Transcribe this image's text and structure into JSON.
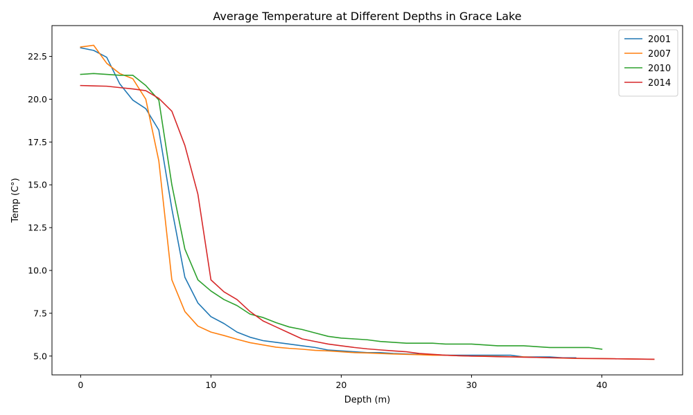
{
  "chart_data": {
    "type": "line",
    "title": "Average Temperature at Different Depths in Grace Lake",
    "xlabel": "Depth (m)",
    "ylabel": "Temp (C°)",
    "xlim": [
      -2.2,
      46.2
    ],
    "ylim": [
      3.9,
      24.3
    ],
    "xticks": [
      0,
      10,
      20,
      30,
      40
    ],
    "yticks": [
      5.0,
      7.5,
      10.0,
      12.5,
      15.0,
      17.5,
      20.0,
      22.5
    ],
    "grid": false,
    "legend_position": "top-right",
    "series": [
      {
        "name": "2001",
        "color": "#1f77b4",
        "x": [
          0,
          1,
          2,
          3,
          4,
          5,
          6,
          7,
          8,
          9,
          10,
          11,
          12,
          13,
          14,
          15,
          16,
          17,
          18,
          19,
          20,
          21,
          22,
          23,
          24,
          25,
          26,
          27,
          28,
          29,
          30,
          31,
          32,
          33,
          34,
          35,
          36,
          37,
          38
        ],
        "y": [
          23.0,
          22.85,
          22.45,
          20.9,
          19.95,
          19.45,
          18.2,
          13.6,
          9.6,
          8.1,
          7.3,
          6.9,
          6.4,
          6.1,
          5.9,
          5.8,
          5.7,
          5.6,
          5.5,
          5.35,
          5.3,
          5.25,
          5.2,
          5.2,
          5.15,
          5.12,
          5.1,
          5.08,
          5.05,
          5.05,
          5.05,
          5.05,
          5.05,
          5.05,
          4.95,
          4.95,
          4.95,
          4.9,
          4.9
        ]
      },
      {
        "name": "2007",
        "color": "#ff7f0e",
        "x": [
          0,
          1,
          2,
          3,
          4,
          5,
          6,
          7,
          8,
          9,
          10,
          11,
          12,
          13,
          14,
          15,
          16,
          17,
          18,
          19,
          20,
          21,
          22,
          23,
          24,
          25,
          26,
          27,
          28,
          29,
          30,
          31,
          32,
          33,
          34,
          35,
          36,
          37,
          38,
          39,
          40,
          41,
          42,
          43,
          44
        ],
        "y": [
          23.05,
          23.15,
          22.1,
          21.5,
          21.2,
          20.0,
          16.4,
          9.45,
          7.6,
          6.75,
          6.4,
          6.2,
          5.98,
          5.78,
          5.65,
          5.52,
          5.45,
          5.4,
          5.33,
          5.3,
          5.25,
          5.2,
          5.18,
          5.15,
          5.12,
          5.1,
          5.08,
          5.05,
          5.05,
          5.02,
          5.0,
          5.0,
          4.98,
          4.96,
          4.95,
          4.92,
          4.9,
          4.88,
          4.86,
          4.85,
          4.85,
          4.84,
          4.83,
          4.82,
          4.81
        ]
      },
      {
        "name": "2010",
        "color": "#2ca02c",
        "x": [
          0,
          1,
          2,
          3,
          4,
          5,
          6,
          7,
          8,
          9,
          10,
          11,
          12,
          13,
          14,
          15,
          16,
          17,
          18,
          19,
          20,
          21,
          22,
          23,
          24,
          25,
          26,
          27,
          28,
          29,
          30,
          31,
          32,
          33,
          34,
          35,
          36,
          37,
          38,
          39,
          40
        ],
        "y": [
          21.45,
          21.5,
          21.45,
          21.4,
          21.4,
          20.8,
          19.95,
          15.0,
          11.25,
          9.45,
          8.8,
          8.3,
          7.95,
          7.45,
          7.25,
          6.95,
          6.7,
          6.55,
          6.35,
          6.15,
          6.05,
          6.0,
          5.95,
          5.85,
          5.8,
          5.75,
          5.75,
          5.75,
          5.7,
          5.7,
          5.7,
          5.65,
          5.6,
          5.6,
          5.6,
          5.55,
          5.5,
          5.5,
          5.5,
          5.5,
          5.4
        ]
      },
      {
        "name": "2014",
        "color": "#d62728",
        "x": [
          0,
          1,
          2,
          3,
          4,
          5,
          6,
          7,
          8,
          9,
          10,
          11,
          12,
          13,
          14,
          15,
          16,
          17,
          18,
          19,
          20,
          21,
          22,
          23,
          24,
          25,
          26,
          27,
          28,
          29,
          30,
          31,
          32,
          33,
          34,
          35,
          36,
          37,
          38,
          39,
          40,
          41,
          42,
          43,
          44
        ],
        "y": [
          20.8,
          20.78,
          20.76,
          20.68,
          20.6,
          20.5,
          20.05,
          19.3,
          17.3,
          14.45,
          9.45,
          8.75,
          8.3,
          7.6,
          7.05,
          6.7,
          6.35,
          6.0,
          5.85,
          5.7,
          5.6,
          5.5,
          5.42,
          5.36,
          5.3,
          5.25,
          5.15,
          5.1,
          5.05,
          5.02,
          5.0,
          4.98,
          4.96,
          4.95,
          4.93,
          4.92,
          4.9,
          4.89,
          4.87,
          4.86,
          4.85,
          4.84,
          4.83,
          4.82,
          4.81
        ]
      }
    ]
  }
}
